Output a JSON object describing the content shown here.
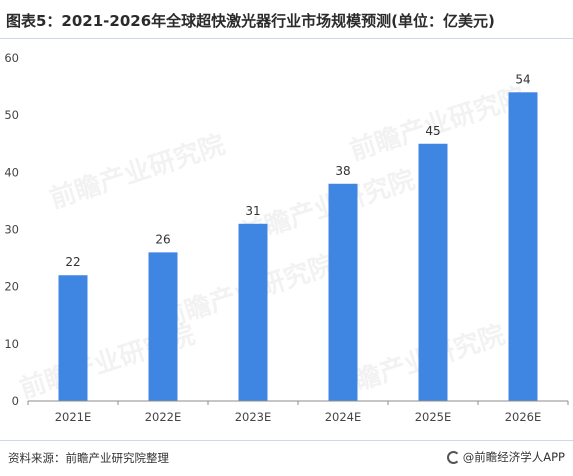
{
  "title": "图表5：2021-2026年全球超快激光器行业市场规模预测(单位：亿美元)",
  "source": "资料来源：前瞻产业研究院整理",
  "brand": "@前瞻经济学人APP",
  "watermark": "前瞻产业研究院",
  "colors": {
    "bar": "#3f86e2",
    "axis": "#8c8c8c",
    "grid": "#e6e6e6"
  },
  "chart_data": {
    "type": "bar",
    "categories": [
      "2021E",
      "2022E",
      "2023E",
      "2024E",
      "2025E",
      "2026E"
    ],
    "values": [
      22,
      26,
      31,
      38,
      45,
      54
    ],
    "title": "",
    "xlabel": "",
    "ylabel": "",
    "ylim": [
      0,
      60
    ],
    "yticks": [
      0,
      10,
      20,
      30,
      40,
      50,
      60
    ],
    "grid": false,
    "data_labels": true
  }
}
